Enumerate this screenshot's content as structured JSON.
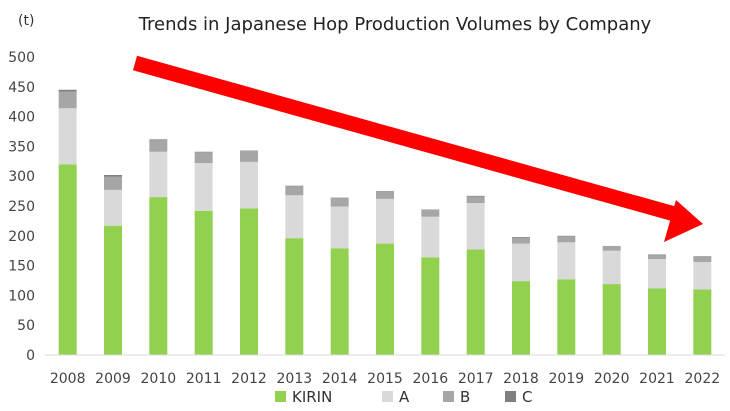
{
  "chart_data": {
    "type": "bar",
    "stacked": true,
    "title": "Trends in Japanese Hop Production Volumes by Company",
    "unit_label": "(t)",
    "ylim": [
      0,
      500
    ],
    "yticks": [
      0,
      50,
      100,
      150,
      200,
      250,
      300,
      350,
      400,
      450,
      500
    ],
    "grid": false,
    "legend_position": "bottom",
    "categories": [
      "2008",
      "2009",
      "2010",
      "2011",
      "2012",
      "2013",
      "2014",
      "2015",
      "2016",
      "2017",
      "2018",
      "2019",
      "2020",
      "2021",
      "2022"
    ],
    "series": [
      {
        "name": "KIRIN",
        "color": "#92d050",
        "values": [
          320,
          217,
          265,
          242,
          246,
          196,
          179,
          187,
          164,
          177,
          124,
          127,
          119,
          112,
          110
        ]
      },
      {
        "name": "A",
        "color": "#d9d9d9",
        "values": [
          94,
          60,
          76,
          80,
          78,
          72,
          70,
          75,
          68,
          78,
          63,
          62,
          56,
          49,
          46
        ]
      },
      {
        "name": "B",
        "color": "#a6a6a6",
        "values": [
          28,
          22,
          20,
          18,
          18,
          15,
          14,
          12,
          11,
          11,
          10,
          10,
          8,
          8,
          10
        ]
      },
      {
        "name": "C",
        "color": "#7f7f7f",
        "values": [
          3,
          3,
          1,
          1,
          1,
          1,
          1,
          1,
          1,
          1,
          1,
          1,
          0,
          0,
          0
        ]
      }
    ],
    "annotation": {
      "type": "trend-arrow",
      "color": "#ff0000",
      "direction": "down"
    }
  }
}
